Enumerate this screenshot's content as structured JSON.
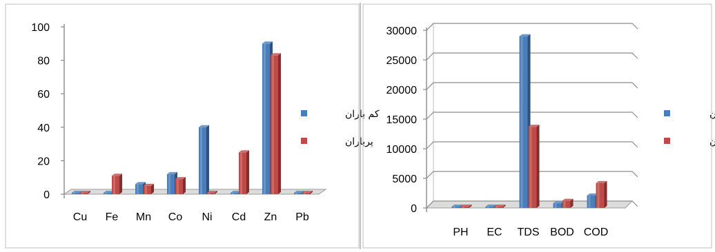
{
  "colors": {
    "series1": "#4a7ebb",
    "series2": "#be4b48"
  },
  "chart_data": [
    {
      "type": "bar",
      "title": "",
      "xlabel": "",
      "ylabel": "",
      "categories": [
        "Cu",
        "Fe",
        "Mn",
        "Co",
        "Ni",
        "Cd",
        "Zn",
        "Pb"
      ],
      "series": [
        {
          "name": "کم باران",
          "values": [
            0,
            0,
            6,
            12,
            40,
            0,
            90,
            0
          ]
        },
        {
          "name": "پرباران",
          "values": [
            0,
            11,
            5,
            9,
            0,
            25,
            83,
            0
          ]
        }
      ],
      "yticks": [
        "0",
        "20",
        "40",
        "60",
        "80",
        "100"
      ],
      "ylim": [
        0,
        100
      ],
      "grid": false,
      "legend": "right"
    },
    {
      "type": "bar",
      "title": "",
      "xlabel": "",
      "ylabel": "",
      "categories": [
        "PH",
        "EC",
        "TDS",
        "BOD",
        "COD"
      ],
      "series": [
        {
          "name": "کم باران",
          "values": [
            0,
            0,
            29000,
            800,
            2100
          ]
        },
        {
          "name": "پرباران",
          "values": [
            0,
            0,
            13700,
            1200,
            4200
          ]
        }
      ],
      "yticks": [
        "0",
        "5000",
        "10000",
        "15000",
        "20000",
        "25000",
        "30000"
      ],
      "ylim": [
        0,
        30000
      ],
      "grid": true,
      "legend": "right"
    }
  ]
}
